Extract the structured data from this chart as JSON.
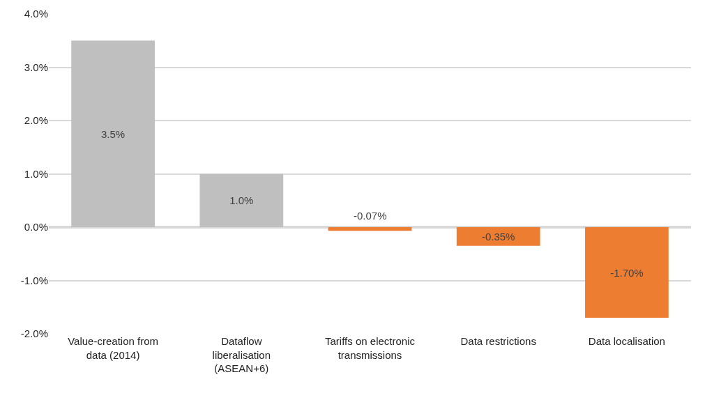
{
  "chart_data": {
    "type": "bar",
    "categories": [
      "Value-creation from data (2014)",
      "Dataflow liberalisation (ASEAN+6)",
      "Tariffs on electronic transmissions",
      "Data restrictions",
      "Data localisation"
    ],
    "values": [
      3.5,
      1.0,
      -0.07,
      -0.35,
      -1.7
    ],
    "colors": [
      "#bfbfbf",
      "#bfbfbf",
      "#ed7d31",
      "#ed7d31",
      "#ed7d31"
    ],
    "value_labels": [
      "3.5%",
      "1.0%",
      "-0.07%",
      "-0.35%",
      "-1.70%"
    ],
    "ylim": [
      -2,
      4
    ],
    "yticks": [
      {
        "value": -2,
        "label": "-2.0%"
      },
      {
        "value": -1,
        "label": "-1.0%"
      },
      {
        "value": 0,
        "label": "0.0%"
      },
      {
        "value": 1,
        "label": "1.0%"
      },
      {
        "value": 2,
        "label": "2.0%"
      },
      {
        "value": 3,
        "label": "3.0%"
      },
      {
        "value": 4,
        "label": "4.0%"
      }
    ],
    "grid": "y"
  }
}
